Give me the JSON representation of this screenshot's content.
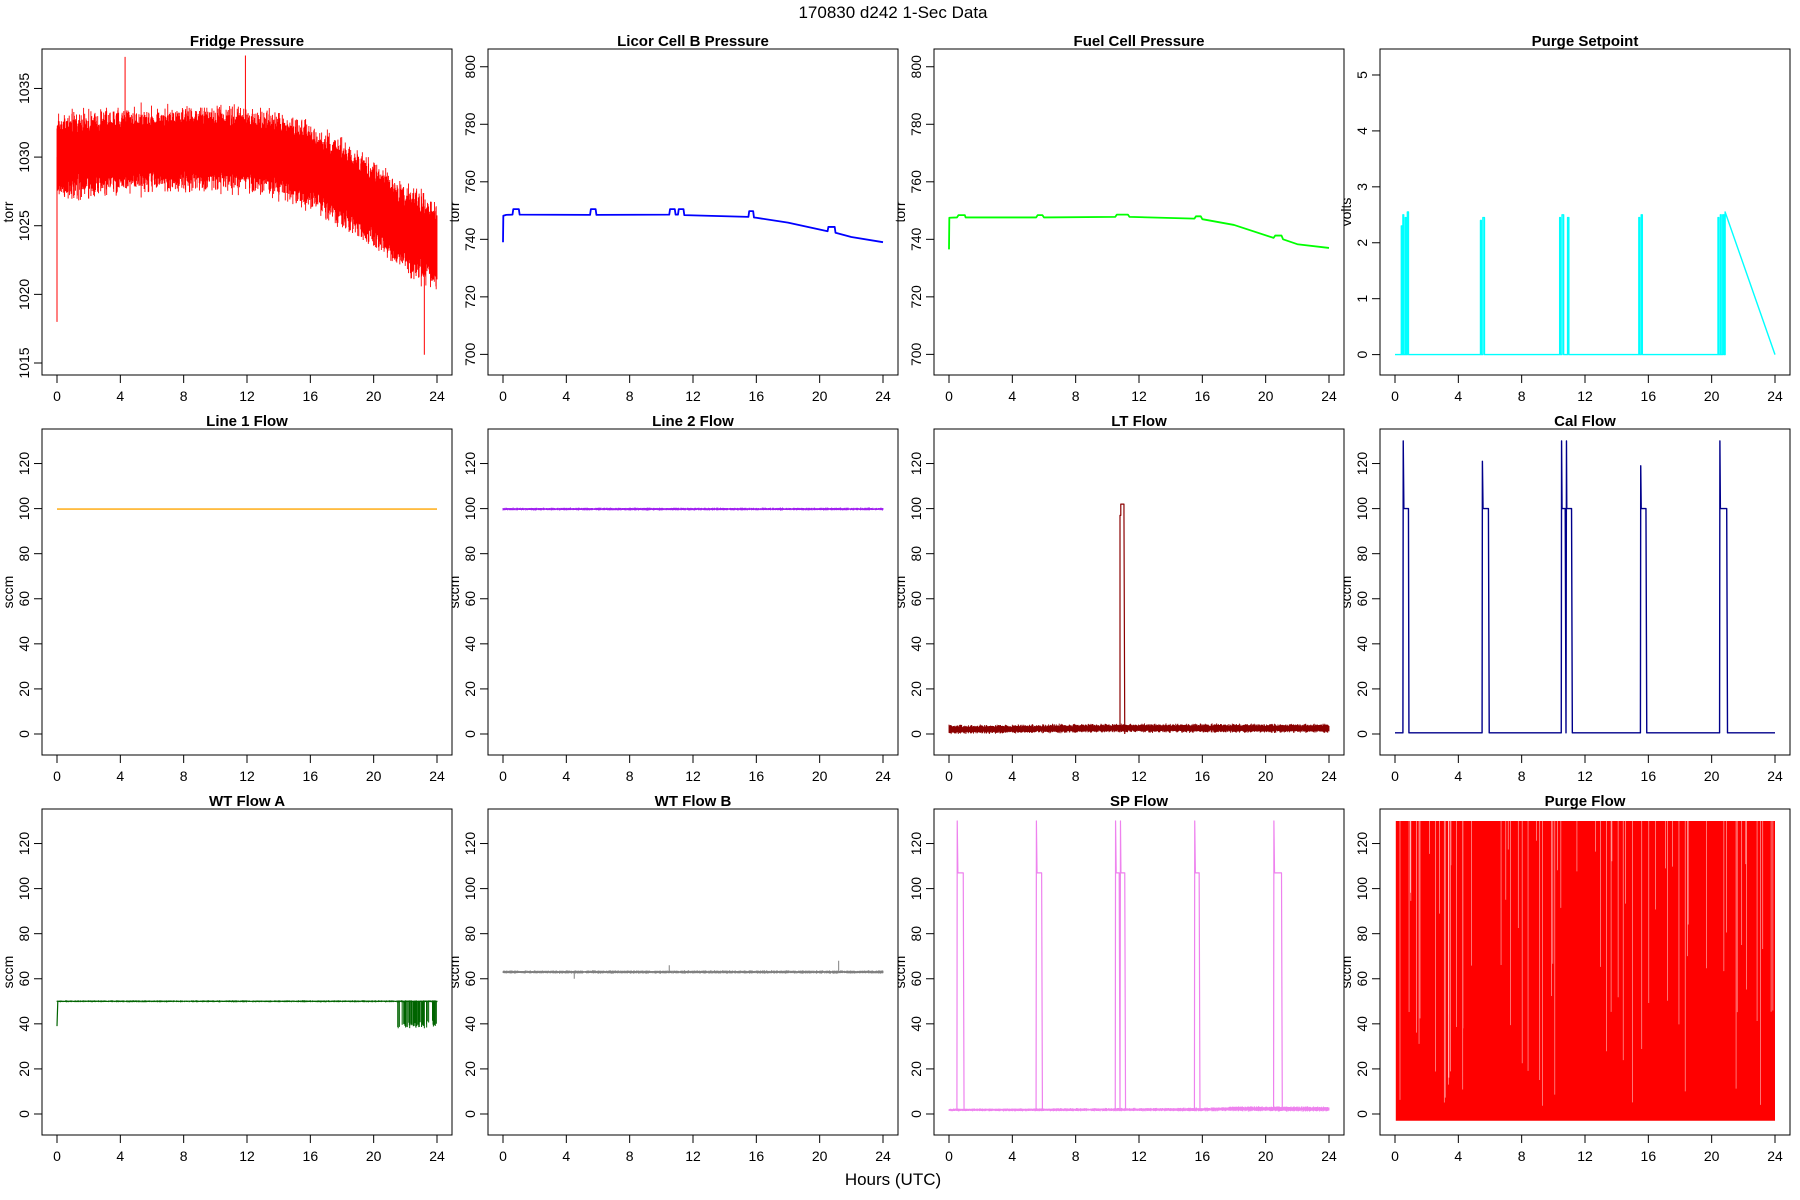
{
  "figure": {
    "title": "170830   d242   1-Sec Data",
    "xlabel": "Hours (UTC)"
  },
  "chart_data": [
    {
      "type": "line",
      "title": "Fridge Pressure",
      "ylabel": "torr",
      "color": "#ff0000",
      "xlim": [
        0,
        24
      ],
      "ylim": [
        1015,
        1037
      ],
      "xticks": [
        0,
        4,
        8,
        12,
        16,
        20,
        24
      ],
      "yticks": [
        1015,
        1020,
        1025,
        1030,
        1035
      ],
      "style": "noise-band",
      "band": {
        "x": [
          0,
          4,
          8,
          12,
          14,
          16,
          18,
          20,
          22,
          24
        ],
        "center": [
          1030,
          1030.5,
          1030.6,
          1030.6,
          1030.2,
          1029.3,
          1028,
          1026.5,
          1024.8,
          1023.5
        ],
        "half_width": [
          3.5,
          3.5,
          3.5,
          3.5,
          3.5,
          3.5,
          3.5,
          3.5,
          3.6,
          3.8
        ]
      },
      "extremes": [
        [
          0.0,
          1018
        ],
        [
          4.3,
          1037.3
        ],
        [
          11.9,
          1037.4
        ],
        [
          23.2,
          1015.6
        ]
      ]
    },
    {
      "type": "line",
      "title": "Licor Cell B Pressure",
      "ylabel": "torr",
      "color": "#0000ff",
      "xlim": [
        0,
        24
      ],
      "ylim": [
        697,
        802
      ],
      "xticks": [
        0,
        4,
        8,
        12,
        16,
        20,
        24
      ],
      "yticks": [
        700,
        720,
        740,
        760,
        780,
        800
      ],
      "x": [
        0,
        0.02,
        0.2,
        0.6,
        0.65,
        1.0,
        1.05,
        5.5,
        5.55,
        5.85,
        5.9,
        10.5,
        10.55,
        10.85,
        10.9,
        11.05,
        11.1,
        11.4,
        11.45,
        15.5,
        15.55,
        15.8,
        15.85,
        16,
        18,
        20.5,
        20.55,
        20.95,
        21.0,
        22,
        24
      ],
      "y": [
        739,
        748.2,
        748.5,
        748.6,
        750.5,
        750.5,
        748.6,
        748.5,
        750.5,
        750.5,
        748.5,
        748.6,
        750.5,
        750.5,
        748.6,
        748.6,
        750.5,
        750.5,
        748.4,
        747.8,
        749.8,
        749.8,
        747.6,
        747.5,
        745.8,
        742.8,
        744.3,
        744.3,
        742.3,
        740.8,
        739
      ]
    },
    {
      "type": "line",
      "title": "Fuel Cell Pressure",
      "ylabel": "torr",
      "color": "#00ff00",
      "xlim": [
        0,
        24
      ],
      "ylim": [
        697,
        802
      ],
      "xticks": [
        0,
        4,
        8,
        12,
        16,
        20,
        24
      ],
      "yticks": [
        700,
        720,
        740,
        760,
        780,
        800
      ],
      "x": [
        0,
        0.02,
        0.5,
        0.6,
        1.0,
        1.05,
        5.5,
        5.6,
        5.9,
        6.0,
        10.5,
        10.6,
        11.3,
        11.4,
        15.5,
        15.6,
        15.9,
        16,
        18,
        20.5,
        20.6,
        21.0,
        21.1,
        22,
        24
      ],
      "y": [
        736.5,
        747.5,
        747.6,
        748.4,
        748.4,
        747.6,
        747.6,
        748.4,
        748.4,
        747.6,
        747.8,
        748.6,
        748.6,
        747.8,
        747.2,
        748,
        748,
        747,
        745,
        740.5,
        741.3,
        741.3,
        740,
        738.3,
        737
      ]
    },
    {
      "type": "line",
      "title": "Purge Setpoint",
      "ylabel": "volts",
      "color": "#00ffff",
      "xlim": [
        0,
        24
      ],
      "ylim": [
        -0.15,
        5.25
      ],
      "xticks": [
        0,
        4,
        8,
        12,
        16,
        20,
        24
      ],
      "yticks": [
        0,
        1,
        2,
        3,
        4,
        5
      ],
      "x": [
        0,
        0.4,
        0.4,
        0.45,
        0.45,
        0.5,
        0.5,
        0.55,
        0.55,
        0.65,
        0.65,
        0.7,
        0.7,
        0.78,
        0.78,
        0.85,
        0.85,
        5.4,
        5.4,
        5.45,
        5.45,
        5.55,
        5.55,
        5.65,
        5.65,
        10.4,
        10.4,
        10.45,
        10.45,
        10.55,
        10.55,
        10.65,
        10.65,
        10.9,
        10.9,
        10.98,
        10.98,
        11.05,
        11.05,
        15.4,
        15.4,
        15.45,
        15.45,
        15.55,
        15.55,
        15.62,
        15.62,
        20.4,
        20.4,
        20.45,
        20.45,
        20.55,
        20.55,
        20.6,
        20.6,
        20.7,
        20.7,
        20.78,
        20.78,
        20.85,
        20.85,
        24
      ],
      "y": [
        0,
        0,
        2.3,
        2.3,
        0,
        0,
        2.5,
        2.5,
        0,
        0,
        2.45,
        2.45,
        0,
        0,
        2.55,
        2.55,
        0,
        0,
        2.4,
        2.4,
        0,
        0,
        2.45,
        2.45,
        0,
        0,
        2.45,
        2.45,
        0,
        0,
        2.5,
        2.5,
        0,
        0,
        2.45,
        2.45,
        0,
        0,
        0,
        0,
        2.45,
        2.45,
        0,
        0,
        2.5,
        2.5,
        0,
        0,
        2.45,
        2.45,
        0,
        0,
        2.5,
        2.5,
        0,
        0,
        2.5,
        2.5,
        0,
        0,
        2.55,
        0
      ]
    },
    {
      "type": "line",
      "title": "Line 1 Flow",
      "ylabel": "sccm",
      "color": "#ffa500",
      "xlim": [
        0,
        24
      ],
      "ylim": [
        -4,
        130
      ],
      "xticks": [
        0,
        4,
        8,
        12,
        16,
        20,
        24
      ],
      "yticks": [
        0,
        20,
        40,
        60,
        80,
        100,
        120
      ],
      "x": [
        0,
        24
      ],
      "y": [
        99.8,
        99.8
      ]
    },
    {
      "type": "line",
      "title": "Line 2 Flow",
      "ylabel": "sccm",
      "color": "#a020f0",
      "xlim": [
        0,
        24
      ],
      "ylim": [
        -4,
        130
      ],
      "xticks": [
        0,
        4,
        8,
        12,
        16,
        20,
        24
      ],
      "yticks": [
        0,
        20,
        40,
        60,
        80,
        100,
        120
      ],
      "style": "noise-band",
      "band": {
        "x": [
          0,
          24
        ],
        "center": [
          99.8,
          99.8
        ],
        "half_width": [
          0.7,
          0.7
        ]
      }
    },
    {
      "type": "line",
      "title": "LT Flow",
      "ylabel": "sccm",
      "color": "#8b0000",
      "xlim": [
        0,
        24
      ],
      "ylim": [
        -4,
        130
      ],
      "xticks": [
        0,
        4,
        8,
        12,
        16,
        20,
        24
      ],
      "yticks": [
        0,
        20,
        40,
        60,
        80,
        100,
        120
      ],
      "style": "noise-band",
      "band": {
        "x": [
          0,
          10.8,
          11.0,
          24
        ],
        "center": [
          2,
          2.6,
          2.6,
          2.5
        ],
        "half_width": [
          2.2,
          2.2,
          2.2,
          2.2
        ]
      },
      "x": [
        10.75,
        10.8,
        10.8,
        10.85,
        10.85,
        11.05,
        11.05,
        11.1
      ],
      "y": [
        1,
        1,
        97,
        97,
        102,
        102,
        98,
        0
      ]
    },
    {
      "type": "line",
      "title": "Cal Flow",
      "ylabel": "sccm",
      "color": "#00008b",
      "xlim": [
        0,
        24
      ],
      "ylim": [
        -4,
        130
      ],
      "xticks": [
        0,
        4,
        8,
        12,
        16,
        20,
        24
      ],
      "yticks": [
        0,
        20,
        40,
        60,
        80,
        100,
        120
      ],
      "x": [
        0,
        0.5,
        0.52,
        0.56,
        0.6,
        0.7,
        0.8,
        0.85,
        0.88,
        5.5,
        5.52,
        5.56,
        5.6,
        5.9,
        5.95,
        10.5,
        10.52,
        10.55,
        10.6,
        10.75,
        10.8,
        10.83,
        10.85,
        10.9,
        11.15,
        11.2,
        15.5,
        15.52,
        15.55,
        15.6,
        15.85,
        15.9,
        20.5,
        20.52,
        20.55,
        20.6,
        20.95,
        21.0,
        24
      ],
      "y": [
        0.5,
        0.5,
        130,
        100,
        100,
        100,
        100,
        100,
        0.5,
        0.5,
        121,
        100,
        100,
        100,
        0.5,
        0.5,
        130,
        100,
        100,
        100,
        0.5,
        130,
        100,
        100,
        100,
        0.5,
        0.5,
        119,
        100,
        100,
        100,
        0.5,
        0.5,
        130,
        100,
        100,
        100,
        0.5,
        0.5
      ]
    },
    {
      "type": "line",
      "title": "WT Flow A",
      "ylabel": "sccm",
      "color": "#006400",
      "xlim": [
        0,
        24
      ],
      "ylim": [
        -4,
        130
      ],
      "xticks": [
        0,
        4,
        8,
        12,
        16,
        20,
        24
      ],
      "yticks": [
        0,
        20,
        40,
        60,
        80,
        100,
        120
      ],
      "style": "noise-band",
      "band": {
        "x": [
          0,
          24
        ],
        "center": [
          50,
          50
        ],
        "half_width": [
          0.5,
          0.5
        ]
      },
      "x": [
        0,
        0.05,
        0.1
      ],
      "y": [
        39,
        50,
        50
      ],
      "dropouts": {
        "x_from": 21.5,
        "x_to": 24,
        "low": 38,
        "high": 50
      }
    },
    {
      "type": "line",
      "title": "WT Flow B",
      "ylabel": "sccm",
      "color": "#808080",
      "xlim": [
        0,
        24
      ],
      "ylim": [
        -4,
        130
      ],
      "xticks": [
        0,
        4,
        8,
        12,
        16,
        20,
        24
      ],
      "yticks": [
        0,
        20,
        40,
        60,
        80,
        100,
        120
      ],
      "style": "noise-band",
      "band": {
        "x": [
          0,
          24
        ],
        "center": [
          63,
          63
        ],
        "half_width": [
          0.8,
          0.8
        ]
      },
      "spikes": [
        [
          4.5,
          60
        ],
        [
          10.5,
          66
        ],
        [
          21.2,
          68
        ]
      ]
    },
    {
      "type": "line",
      "title": "SP Flow",
      "ylabel": "sccm",
      "color": "#ee82ee",
      "xlim": [
        0,
        24
      ],
      "ylim": [
        -4,
        130
      ],
      "xticks": [
        0,
        4,
        8,
        12,
        16,
        20,
        24
      ],
      "yticks": [
        0,
        20,
        40,
        60,
        80,
        100,
        120
      ],
      "style": "noise-band",
      "band": {
        "x": [
          0,
          16,
          18,
          24
        ],
        "center": [
          1.8,
          2,
          2.3,
          2.2
        ],
        "half_width": [
          0.7,
          0.9,
          1.3,
          1.3
        ]
      },
      "x": [
        0.45,
        0.5,
        0.52,
        0.56,
        0.6,
        0.9,
        0.95,
        5.45,
        5.5,
        5.52,
        5.56,
        5.85,
        5.9,
        10.45,
        10.5,
        10.52,
        10.56,
        10.75,
        10.8,
        10.83,
        10.86,
        11.1,
        11.15,
        15.45,
        15.5,
        15.52,
        15.56,
        15.8,
        15.85,
        20.45,
        20.5,
        20.52,
        20.56,
        21.0,
        21.05
      ],
      "y": [
        2,
        2,
        130,
        107,
        107,
        107,
        2,
        2,
        2,
        130,
        107,
        107,
        2,
        2,
        2,
        130,
        107,
        107,
        2,
        130,
        107,
        107,
        2,
        2,
        2,
        130,
        107,
        107,
        2,
        2,
        2,
        130,
        107,
        107,
        2
      ]
    },
    {
      "type": "line",
      "title": "Purge Flow",
      "ylabel": "sccm",
      "color": "#ff0000",
      "xlim": [
        0,
        24
      ],
      "ylim": [
        -4,
        130
      ],
      "xticks": [
        0,
        4,
        8,
        12,
        16,
        20,
        24
      ],
      "yticks": [
        0,
        20,
        40,
        60,
        80,
        100,
        120
      ],
      "style": "fill-noise",
      "fill": {
        "x_from": 0.05,
        "x_to": 24,
        "low": -3,
        "high": 130
      }
    }
  ]
}
